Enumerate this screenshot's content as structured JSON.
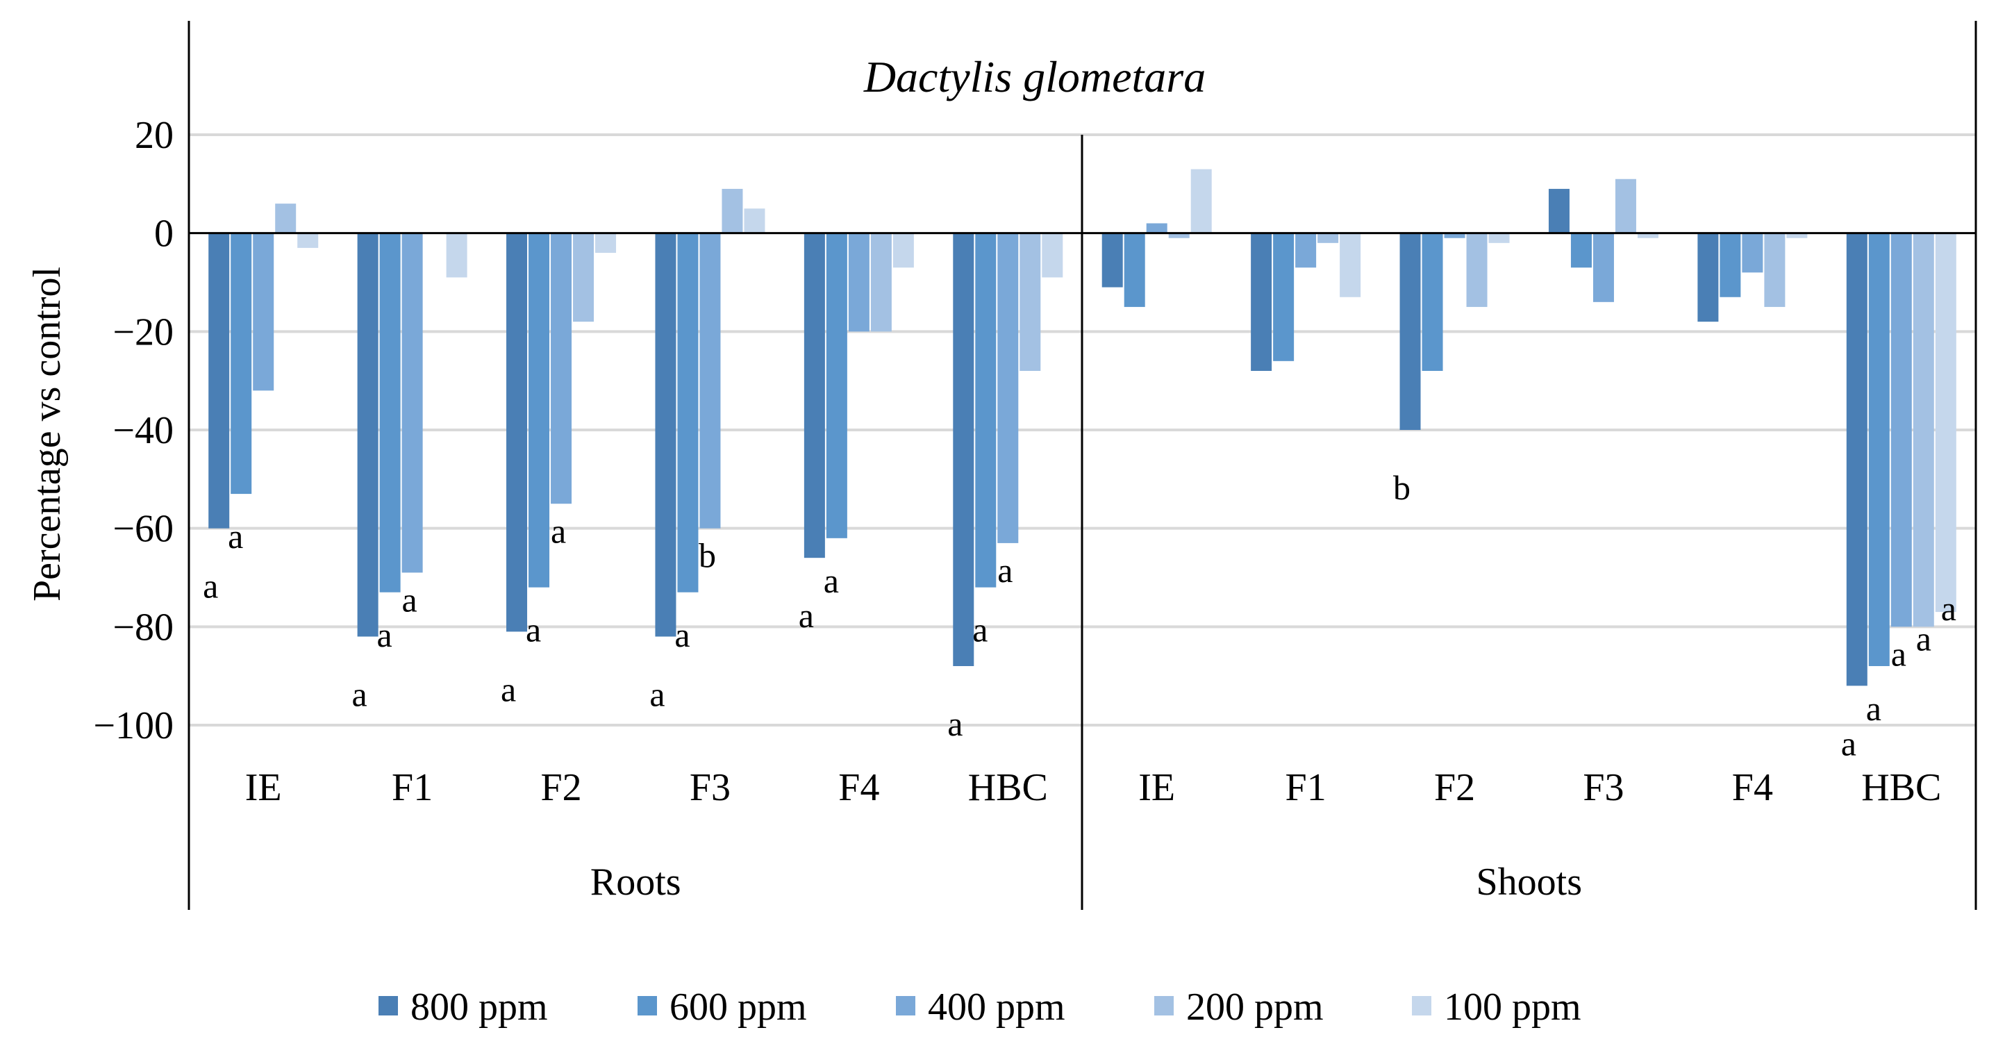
{
  "chart_data": {
    "type": "bar",
    "title": "Dactylis glometara",
    "ylabel": "Percentage vs control",
    "xlabel": "",
    "ylim": [
      -100,
      20
    ],
    "yticks": [
      20,
      0,
      -20,
      -40,
      -60,
      -80,
      -100
    ],
    "ytick_labels": [
      "20",
      "0",
      "−20",
      "−40",
      "−60",
      "−80",
      "−100"
    ],
    "grid": true,
    "legend_position": "bottom",
    "series": [
      {
        "name": "800 ppm",
        "color": "#4a7fb5"
      },
      {
        "name": "600 ppm",
        "color": "#5b96cc"
      },
      {
        "name": "400 ppm",
        "color": "#7aa8d8"
      },
      {
        "name": "200 ppm",
        "color": "#a3c1e3"
      },
      {
        "name": "100 ppm",
        "color": "#c5d7ec"
      }
    ],
    "groups": [
      {
        "name": "Roots",
        "categories": [
          {
            "name": "IE",
            "values": [
              -60,
              -53,
              -32,
              6,
              -3
            ],
            "labels": [
              "a",
              "a",
              "",
              "",
              ""
            ]
          },
          {
            "name": "F1",
            "values": [
              -82,
              -73,
              -69,
              0,
              -9
            ],
            "labels": [
              "a",
              "a",
              "a",
              "",
              ""
            ]
          },
          {
            "name": "F2",
            "values": [
              -81,
              -72,
              -55,
              -18,
              -4
            ],
            "labels": [
              "a",
              "a",
              "a",
              "",
              ""
            ]
          },
          {
            "name": "F3",
            "values": [
              -82,
              -73,
              -60,
              9,
              5
            ],
            "labels": [
              "a",
              "a",
              "b",
              "",
              ""
            ]
          },
          {
            "name": "F4",
            "values": [
              -66,
              -62,
              -20,
              -20,
              -7
            ],
            "labels": [
              "a",
              "a",
              "",
              "",
              ""
            ]
          },
          {
            "name": "HBC",
            "values": [
              -88,
              -72,
              -63,
              -28,
              -9
            ],
            "labels": [
              "a",
              "a",
              "a",
              "",
              ""
            ]
          }
        ]
      },
      {
        "name": "Shoots",
        "categories": [
          {
            "name": "IE",
            "values": [
              -11,
              -15,
              2,
              -1,
              13
            ],
            "labels": [
              "",
              "",
              "",
              "",
              ""
            ]
          },
          {
            "name": "F1",
            "values": [
              -28,
              -26,
              -7,
              -2,
              -13
            ],
            "labels": [
              "",
              "",
              "",
              "",
              ""
            ]
          },
          {
            "name": "F2",
            "values": [
              -40,
              -28,
              -1,
              -15,
              -2
            ],
            "labels": [
              "b",
              "",
              "",
              "",
              ""
            ]
          },
          {
            "name": "F3",
            "values": [
              9,
              -7,
              -14,
              11,
              -1
            ],
            "labels": [
              "",
              "",
              "",
              "",
              ""
            ]
          },
          {
            "name": "F4",
            "values": [
              -18,
              -13,
              -8,
              -15,
              -1
            ],
            "labels": [
              "",
              "",
              "",
              "",
              ""
            ]
          },
          {
            "name": "HBC",
            "values": [
              -92,
              -88,
              -80,
              -80,
              -77
            ],
            "labels": [
              "a",
              "a",
              "a",
              "a",
              "a"
            ]
          }
        ]
      }
    ]
  }
}
